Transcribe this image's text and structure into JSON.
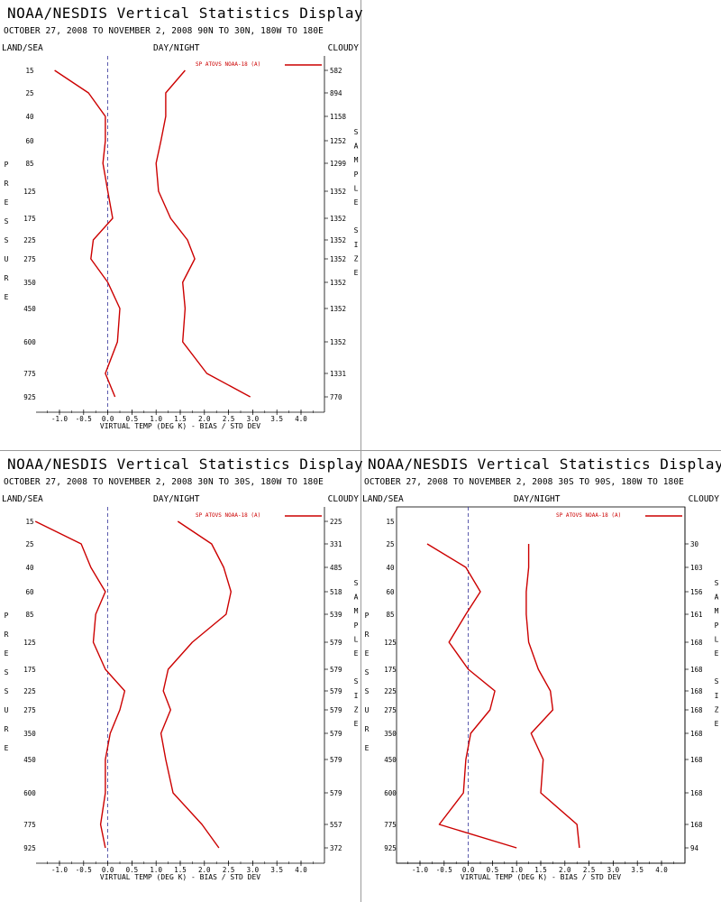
{
  "panel_title": "NOAA/NESDIS Vertical Statistics Display",
  "header_left": "LAND/SEA",
  "header_mid": "DAY/NIGHT",
  "header_right": "CLOUDY",
  "left_axis_label": "PRESSURE",
  "right_axis_label": "SAMPLE SIZE",
  "colors": {
    "series": "#cc0000",
    "zero_line": "#333399",
    "axes": "#000000",
    "divider": "#9a9a9a"
  },
  "chart_data": [
    {
      "type": "line",
      "subtitle": "OCTOBER 27, 2008 TO NOVEMBER 2, 2008 90N TO 30N, 180W TO 180E",
      "title": "NOAA/NESDIS Vertical Statistics Display",
      "xlabel": "VIRTUAL TEMP (DEG K) - BIAS / STD DEV",
      "ylabel": "PRESSURE",
      "y2label": "SAMPLE SIZE",
      "xlim": [
        -1.5,
        4.5
      ],
      "xticks": [
        "-1.0",
        "-0.5",
        "0.0",
        "0.5",
        "1.0",
        "1.5",
        "2.0",
        "2.5",
        "3.0",
        "3.5",
        "4.0"
      ],
      "y_levels": [
        "15",
        "25",
        "40",
        "60",
        "85",
        "125",
        "175",
        "225",
        "275",
        "350",
        "450",
        "600",
        "775",
        "925"
      ],
      "sample_size": [
        "582",
        "894",
        "1158",
        "1252",
        "1299",
        "1352",
        "1352",
        "1352",
        "1352",
        "1352",
        "1352",
        "1352",
        "1331",
        "770"
      ],
      "legend": "SP ATOVS NOAA-18 (A)",
      "series": [
        {
          "values": [
            -1.1,
            -0.4,
            -0.05,
            -0.05,
            -0.1,
            0.0,
            0.1,
            -0.3,
            -0.35,
            0.0,
            0.25,
            0.2,
            -0.05,
            0.15
          ]
        },
        {
          "values": [
            1.6,
            1.2,
            1.2,
            1.1,
            1.0,
            1.05,
            1.3,
            1.65,
            1.8,
            1.55,
            1.6,
            1.55,
            2.05,
            2.95
          ]
        }
      ]
    },
    {
      "type": "line",
      "subtitle": "OCTOBER 27, 2008 TO NOVEMBER 2, 2008 30N TO 30S, 180W TO 180E",
      "title": "NOAA/NESDIS Vertical Statistics Display",
      "xlabel": "VIRTUAL TEMP (DEG K) - BIAS / STD DEV",
      "ylabel": "PRESSURE",
      "y2label": "SAMPLE SIZE",
      "xlim": [
        -1.5,
        4.5
      ],
      "xticks": [
        "-1.0",
        "-0.5",
        "0.0",
        "0.5",
        "1.0",
        "1.5",
        "2.0",
        "2.5",
        "3.0",
        "3.5",
        "4.0"
      ],
      "y_levels": [
        "15",
        "25",
        "40",
        "60",
        "85",
        "125",
        "175",
        "225",
        "275",
        "350",
        "450",
        "600",
        "775",
        "925"
      ],
      "sample_size": [
        "225",
        "331",
        "485",
        "518",
        "539",
        "579",
        "579",
        "579",
        "579",
        "579",
        "579",
        "579",
        "557",
        "372"
      ],
      "legend": "SP ATOVS NOAA-18 (A)",
      "series": [
        {
          "values": [
            -1.5,
            -0.55,
            -0.35,
            -0.05,
            -0.25,
            -0.3,
            -0.05,
            0.35,
            0.25,
            0.05,
            -0.05,
            -0.05,
            -0.15,
            -0.05
          ]
        },
        {
          "values": [
            1.45,
            2.15,
            2.4,
            2.55,
            2.45,
            1.75,
            1.25,
            1.15,
            1.3,
            1.1,
            1.2,
            1.35,
            1.95,
            2.3
          ]
        }
      ]
    },
    {
      "type": "line",
      "subtitle": "OCTOBER 27, 2008 TO NOVEMBER 2, 2008 30S TO 90S, 180W TO 180E",
      "title": "NOAA/NESDIS Vertical Statistics Display",
      "xlabel": "VIRTUAL TEMP (DEG K) - BIAS / STD DEV",
      "ylabel": "PRESSURE",
      "y2label": "SAMPLE SIZE",
      "xlim": [
        -1.5,
        4.5
      ],
      "xticks": [
        "-1.0",
        "-0.5",
        "0.0",
        "0.5",
        "1.0",
        "1.5",
        "2.0",
        "2.5",
        "3.0",
        "3.5",
        "4.0"
      ],
      "y_levels": [
        "15",
        "25",
        "40",
        "60",
        "85",
        "125",
        "175",
        "225",
        "275",
        "350",
        "450",
        "600",
        "775",
        "925"
      ],
      "sample_size": [
        "",
        "30",
        "103",
        "156",
        "161",
        "168",
        "168",
        "168",
        "168",
        "168",
        "168",
        "168",
        "168",
        "94"
      ],
      "legend": "SP ATOVS NOAA-18 (A)",
      "series": [
        {
          "values": [
            null,
            -0.85,
            -0.05,
            0.25,
            -0.05,
            -0.4,
            0.0,
            0.55,
            0.45,
            0.05,
            -0.05,
            -0.1,
            -0.6,
            1.0
          ]
        },
        {
          "values": [
            null,
            1.25,
            1.25,
            1.2,
            1.2,
            1.25,
            1.45,
            1.7,
            1.75,
            1.3,
            1.55,
            1.5,
            2.25,
            2.3
          ]
        }
      ]
    }
  ]
}
